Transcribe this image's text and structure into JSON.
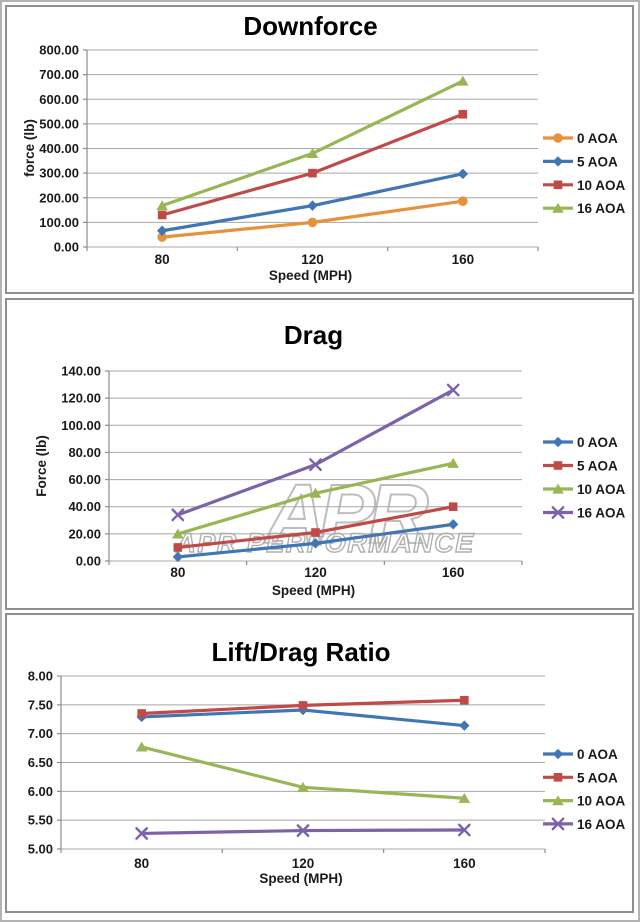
{
  "page": {
    "background": "#ffffff",
    "panel_border_color": "#8f8f8f",
    "gridline_color": "#a8a8a8",
    "axis_color": "#8c8c8c",
    "text_color": "#1a1a1a"
  },
  "chart_data": [
    {
      "type": "line",
      "title": "Downforce",
      "xlabel": "Speed (MPH)",
      "ylabel": "force (lb)",
      "categories": [
        80,
        120,
        160
      ],
      "x_tick_labels": [
        "80",
        "120",
        "160"
      ],
      "ylim": [
        0,
        800
      ],
      "ytick_step": 100,
      "ytick_labels": [
        "0.00",
        "100.00",
        "200.00",
        "300.00",
        "400.00",
        "500.00",
        "600.00",
        "700.00",
        "800.00"
      ],
      "grid": true,
      "legend_position": "right",
      "series": [
        {
          "name": "0 AOA",
          "marker": "circle",
          "color": "#e8913d",
          "values": [
            40,
            100,
            186
          ]
        },
        {
          "name": "5 AOA",
          "marker": "diamond",
          "color": "#4076b4",
          "values": [
            66,
            168,
            297
          ]
        },
        {
          "name": "10 AOA",
          "marker": "square",
          "color": "#be4b48",
          "values": [
            130,
            300,
            539
          ]
        },
        {
          "name": "16 AOA",
          "marker": "triangle",
          "color": "#98b653",
          "values": [
            168,
            380,
            674
          ]
        }
      ]
    },
    {
      "type": "line",
      "title": "Drag",
      "xlabel": "Speed (MPH)",
      "ylabel": "Force (lb)",
      "categories": [
        80,
        120,
        160
      ],
      "x_tick_labels": [
        "80",
        "120",
        "160"
      ],
      "ylim": [
        0,
        140
      ],
      "ytick_step": 20,
      "ytick_labels": [
        "0.00",
        "20.00",
        "40.00",
        "60.00",
        "80.00",
        "100.00",
        "120.00",
        "140.00"
      ],
      "grid": true,
      "legend_position": "right",
      "watermark": {
        "logo_text": "APR",
        "text": "APR PERFORMANCE",
        "color": "#a8a8a8"
      },
      "series": [
        {
          "name": "0 AOA",
          "marker": "diamond",
          "color": "#4076b4",
          "values": [
            3,
            13,
            27
          ]
        },
        {
          "name": "5 AOA",
          "marker": "square",
          "color": "#be4b48",
          "values": [
            10,
            21,
            40
          ]
        },
        {
          "name": "10 AOA",
          "marker": "triangle",
          "color": "#98b653",
          "values": [
            20,
            50,
            72
          ]
        },
        {
          "name": "16 AOA",
          "marker": "x",
          "color": "#7d61a9",
          "values": [
            34,
            71,
            126
          ]
        }
      ]
    },
    {
      "type": "line",
      "title": "Lift/Drag Ratio",
      "xlabel": "Speed (MPH)",
      "ylabel": "",
      "categories": [
        80,
        120,
        160
      ],
      "x_tick_labels": [
        "80",
        "120",
        "160"
      ],
      "ylim": [
        5,
        8
      ],
      "ytick_step": 0.5,
      "ytick_labels": [
        "5.00",
        "5.50",
        "6.00",
        "6.50",
        "7.00",
        "7.50",
        "8.00"
      ],
      "grid": true,
      "legend_position": "right",
      "series": [
        {
          "name": "0 AOA",
          "marker": "diamond",
          "color": "#4076b4",
          "values": [
            7.29,
            7.41,
            7.14
          ]
        },
        {
          "name": "5 AOA",
          "marker": "square",
          "color": "#be4b48",
          "values": [
            7.35,
            7.49,
            7.58
          ]
        },
        {
          "name": "10 AOA",
          "marker": "triangle",
          "color": "#98b653",
          "values": [
            6.77,
            6.07,
            5.88
          ]
        },
        {
          "name": "16 AOA",
          "marker": "x",
          "color": "#7d61a9",
          "values": [
            5.27,
            5.32,
            5.33
          ]
        }
      ]
    }
  ]
}
